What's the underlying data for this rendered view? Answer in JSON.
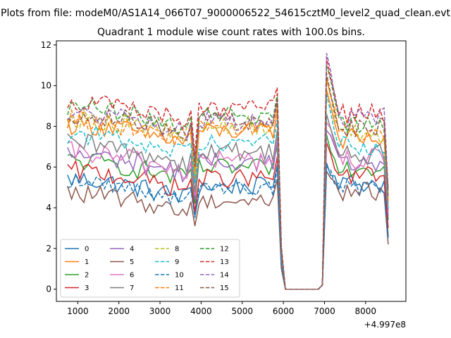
{
  "figure": {
    "suptitle": "Plots from file: modeM0/AS1A14_066T07_9000006522_54615cztM0_level2_quad_clean.evt"
  },
  "chart_data": {
    "type": "line",
    "title": "Quadrant 1 module wise count rates with 100.0s bins.",
    "xlabel": "",
    "ylabel": "",
    "xlim": [
      480,
      8980
    ],
    "ylim": [
      -0.6,
      12.2
    ],
    "x_offset_text": "+4.997e8",
    "xticks": [
      1000,
      2000,
      3000,
      4000,
      5000,
      6000,
      7000,
      8000
    ],
    "yticks": [
      0,
      2,
      4,
      6,
      8,
      10,
      12
    ],
    "legend": {
      "position": "lower-left",
      "columns": 4
    },
    "x": [
      750,
      850,
      950,
      1050,
      1150,
      1250,
      1350,
      1450,
      1550,
      1650,
      1750,
      1850,
      1950,
      2050,
      2150,
      2250,
      2350,
      2450,
      2550,
      2650,
      2750,
      2850,
      2950,
      3050,
      3150,
      3250,
      3350,
      3450,
      3550,
      3650,
      3750,
      3850,
      3950,
      4050,
      4150,
      4250,
      4350,
      4450,
      4550,
      4650,
      4750,
      4850,
      4950,
      5050,
      5150,
      5250,
      5350,
      5450,
      5550,
      5650,
      5750,
      5850,
      5950,
      6050,
      6150,
      6250,
      6350,
      6450,
      6550,
      6650,
      6750,
      6850,
      6950,
      7050,
      7150,
      7250,
      7350,
      7450,
      7550,
      7650,
      7750,
      7850,
      7950,
      8050,
      8150,
      8250,
      8350,
      8450,
      8550
    ],
    "series": [
      {
        "name": "0",
        "color": "#1f77b4",
        "dash": "solid",
        "base": 4.8,
        "amp": 0.5,
        "dip": 3.6,
        "spike": 6.2,
        "post": 5.2,
        "end": 2.6
      },
      {
        "name": "1",
        "color": "#ff7f0e",
        "dash": "solid",
        "base": 7.5,
        "amp": 0.5,
        "dip": 5.2,
        "spike": 9.8,
        "post": 7.4,
        "end": 4.2
      },
      {
        "name": "2",
        "color": "#2ca02c",
        "dash": "solid",
        "base": 5.7,
        "amp": 0.5,
        "dip": 4.2,
        "spike": 7.6,
        "post": 6.0,
        "end": 3.4
      },
      {
        "name": "3",
        "color": "#d62728",
        "dash": "solid",
        "base": 5.2,
        "amp": 0.5,
        "dip": 3.8,
        "spike": 7.2,
        "post": 5.6,
        "end": 3.0
      },
      {
        "name": "4",
        "color": "#9467bd",
        "dash": "solid",
        "base": 6.0,
        "amp": 0.5,
        "dip": 4.4,
        "spike": 7.8,
        "post": 6.2,
        "end": 3.6
      },
      {
        "name": "5",
        "color": "#8c564b",
        "dash": "solid",
        "base": 4.1,
        "amp": 0.45,
        "dip": 3.1,
        "spike": 5.8,
        "post": 4.8,
        "end": 2.2
      },
      {
        "name": "6",
        "color": "#e377c2",
        "dash": "solid",
        "base": 6.1,
        "amp": 0.55,
        "dip": 4.6,
        "spike": 8.2,
        "post": 6.4,
        "end": 3.8
      },
      {
        "name": "7",
        "color": "#7f7f7f",
        "dash": "solid",
        "base": 6.5,
        "amp": 0.55,
        "dip": 4.8,
        "spike": 8.6,
        "post": 6.6,
        "end": 3.9
      },
      {
        "name": "8",
        "color": "#bcbd22",
        "dash": "dashed",
        "base": 7.8,
        "amp": 0.5,
        "dip": 5.6,
        "spike": 10.2,
        "post": 7.6,
        "end": 4.4
      },
      {
        "name": "9",
        "color": "#17becf",
        "dash": "dashed",
        "base": 7.0,
        "amp": 0.5,
        "dip": 5.2,
        "spike": 9.6,
        "post": 7.0,
        "end": 4.0
      },
      {
        "name": "10",
        "color": "#1f77b4",
        "dash": "dashed",
        "base": 4.7,
        "amp": 0.4,
        "dip": 3.5,
        "spike": 6.0,
        "post": 5.0,
        "end": 2.5
      },
      {
        "name": "11",
        "color": "#ff7f0e",
        "dash": "dashed",
        "base": 7.7,
        "amp": 0.5,
        "dip": 5.8,
        "spike": 10.4,
        "post": 7.8,
        "end": 4.3
      },
      {
        "name": "12",
        "color": "#2ca02c",
        "dash": "dashed",
        "base": 8.3,
        "amp": 0.5,
        "dip": 6.2,
        "spike": 11.0,
        "post": 8.2,
        "end": 4.8
      },
      {
        "name": "13",
        "color": "#d62728",
        "dash": "dashed",
        "base": 8.6,
        "amp": 0.5,
        "dip": 6.6,
        "spike": 11.4,
        "post": 8.6,
        "end": 5.0
      },
      {
        "name": "14",
        "color": "#9467bd",
        "dash": "dashed",
        "base": 8.0,
        "amp": 0.5,
        "dip": 6.4,
        "spike": 11.6,
        "post": 8.4,
        "end": 4.9
      },
      {
        "name": "15",
        "color": "#8c564b",
        "dash": "dashed",
        "base": 8.0,
        "amp": 0.5,
        "dip": 6.0,
        "spike": 10.6,
        "post": 7.9,
        "end": 4.5
      }
    ]
  }
}
